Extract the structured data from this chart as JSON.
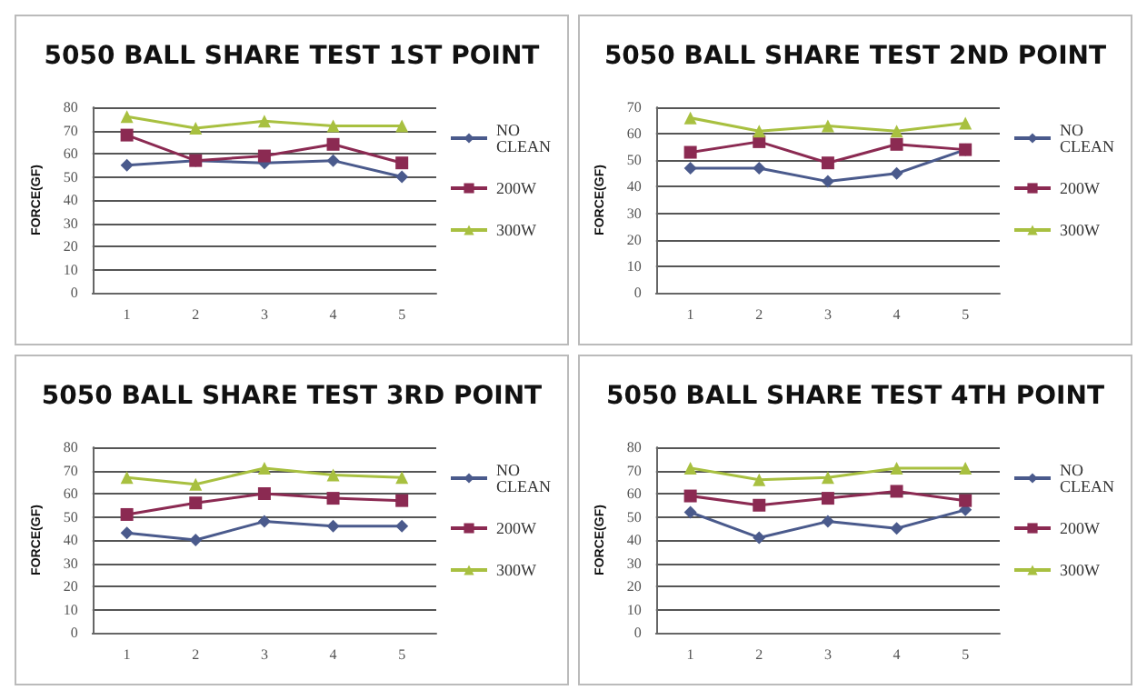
{
  "chart_data": [
    {
      "type": "line",
      "title": "5050 BALL SHARE TEST 1ST POINT",
      "ylabel": "FORCE(GF)",
      "categories": [
        "1",
        "2",
        "3",
        "4",
        "5"
      ],
      "ylim": [
        0,
        80
      ],
      "yticks": [
        0,
        10,
        20,
        30,
        40,
        50,
        60,
        70,
        80
      ],
      "grid": "y",
      "legend": "right",
      "series": [
        {
          "name": "NO CLEAN",
          "color": "#4a5a8c",
          "marker": "diamond",
          "values": [
            55,
            57,
            56,
            57,
            50
          ]
        },
        {
          "name": "200W",
          "color": "#8b2a52",
          "marker": "square",
          "values": [
            68,
            57,
            59,
            64,
            56
          ]
        },
        {
          "name": "300W",
          "color": "#a8c040",
          "marker": "triangle",
          "values": [
            76,
            71,
            74,
            72,
            72
          ]
        }
      ]
    },
    {
      "type": "line",
      "title": "5050 BALL SHARE TEST 2ND POINT",
      "ylabel": "FORCE(GF)",
      "categories": [
        "1",
        "2",
        "3",
        "4",
        "5"
      ],
      "ylim": [
        0,
        70
      ],
      "yticks": [
        0,
        10,
        20,
        30,
        40,
        50,
        60,
        70
      ],
      "grid": "y",
      "legend": "right",
      "series": [
        {
          "name": "NO CLEAN",
          "color": "#4a5a8c",
          "marker": "diamond",
          "values": [
            47,
            47,
            42,
            45,
            54
          ]
        },
        {
          "name": "200W",
          "color": "#8b2a52",
          "marker": "square",
          "values": [
            53,
            57,
            49,
            56,
            54
          ]
        },
        {
          "name": "300W",
          "color": "#a8c040",
          "marker": "triangle",
          "values": [
            66,
            61,
            63,
            61,
            64
          ]
        }
      ]
    },
    {
      "type": "line",
      "title": "5050 BALL SHARE TEST 3RD POINT",
      "ylabel": "FORCE(GF)",
      "categories": [
        "1",
        "2",
        "3",
        "4",
        "5"
      ],
      "ylim": [
        0,
        80
      ],
      "yticks": [
        0,
        10,
        20,
        30,
        40,
        50,
        60,
        70,
        80
      ],
      "grid": "y",
      "legend": "right",
      "series": [
        {
          "name": "NO CLEAN",
          "color": "#4a5a8c",
          "marker": "diamond",
          "values": [
            43,
            40,
            48,
            46,
            46
          ]
        },
        {
          "name": "200W",
          "color": "#8b2a52",
          "marker": "square",
          "values": [
            51,
            56,
            60,
            58,
            57
          ]
        },
        {
          "name": "300W",
          "color": "#a8c040",
          "marker": "triangle",
          "values": [
            67,
            64,
            71,
            68,
            67
          ]
        }
      ]
    },
    {
      "type": "line",
      "title": "5050 BALL SHARE TEST 4TH POINT",
      "ylabel": "FORCE(GF)",
      "categories": [
        "1",
        "2",
        "3",
        "4",
        "5"
      ],
      "ylim": [
        0,
        80
      ],
      "yticks": [
        0,
        10,
        20,
        30,
        40,
        50,
        60,
        70,
        80
      ],
      "grid": "y",
      "legend": "right",
      "series": [
        {
          "name": "NO CLEAN",
          "color": "#4a5a8c",
          "marker": "diamond",
          "values": [
            52,
            41,
            48,
            45,
            53
          ]
        },
        {
          "name": "200W",
          "color": "#8b2a52",
          "marker": "square",
          "values": [
            59,
            55,
            58,
            61,
            57
          ]
        },
        {
          "name": "300W",
          "color": "#a8c040",
          "marker": "triangle",
          "values": [
            71,
            66,
            67,
            71,
            71
          ]
        }
      ]
    }
  ]
}
